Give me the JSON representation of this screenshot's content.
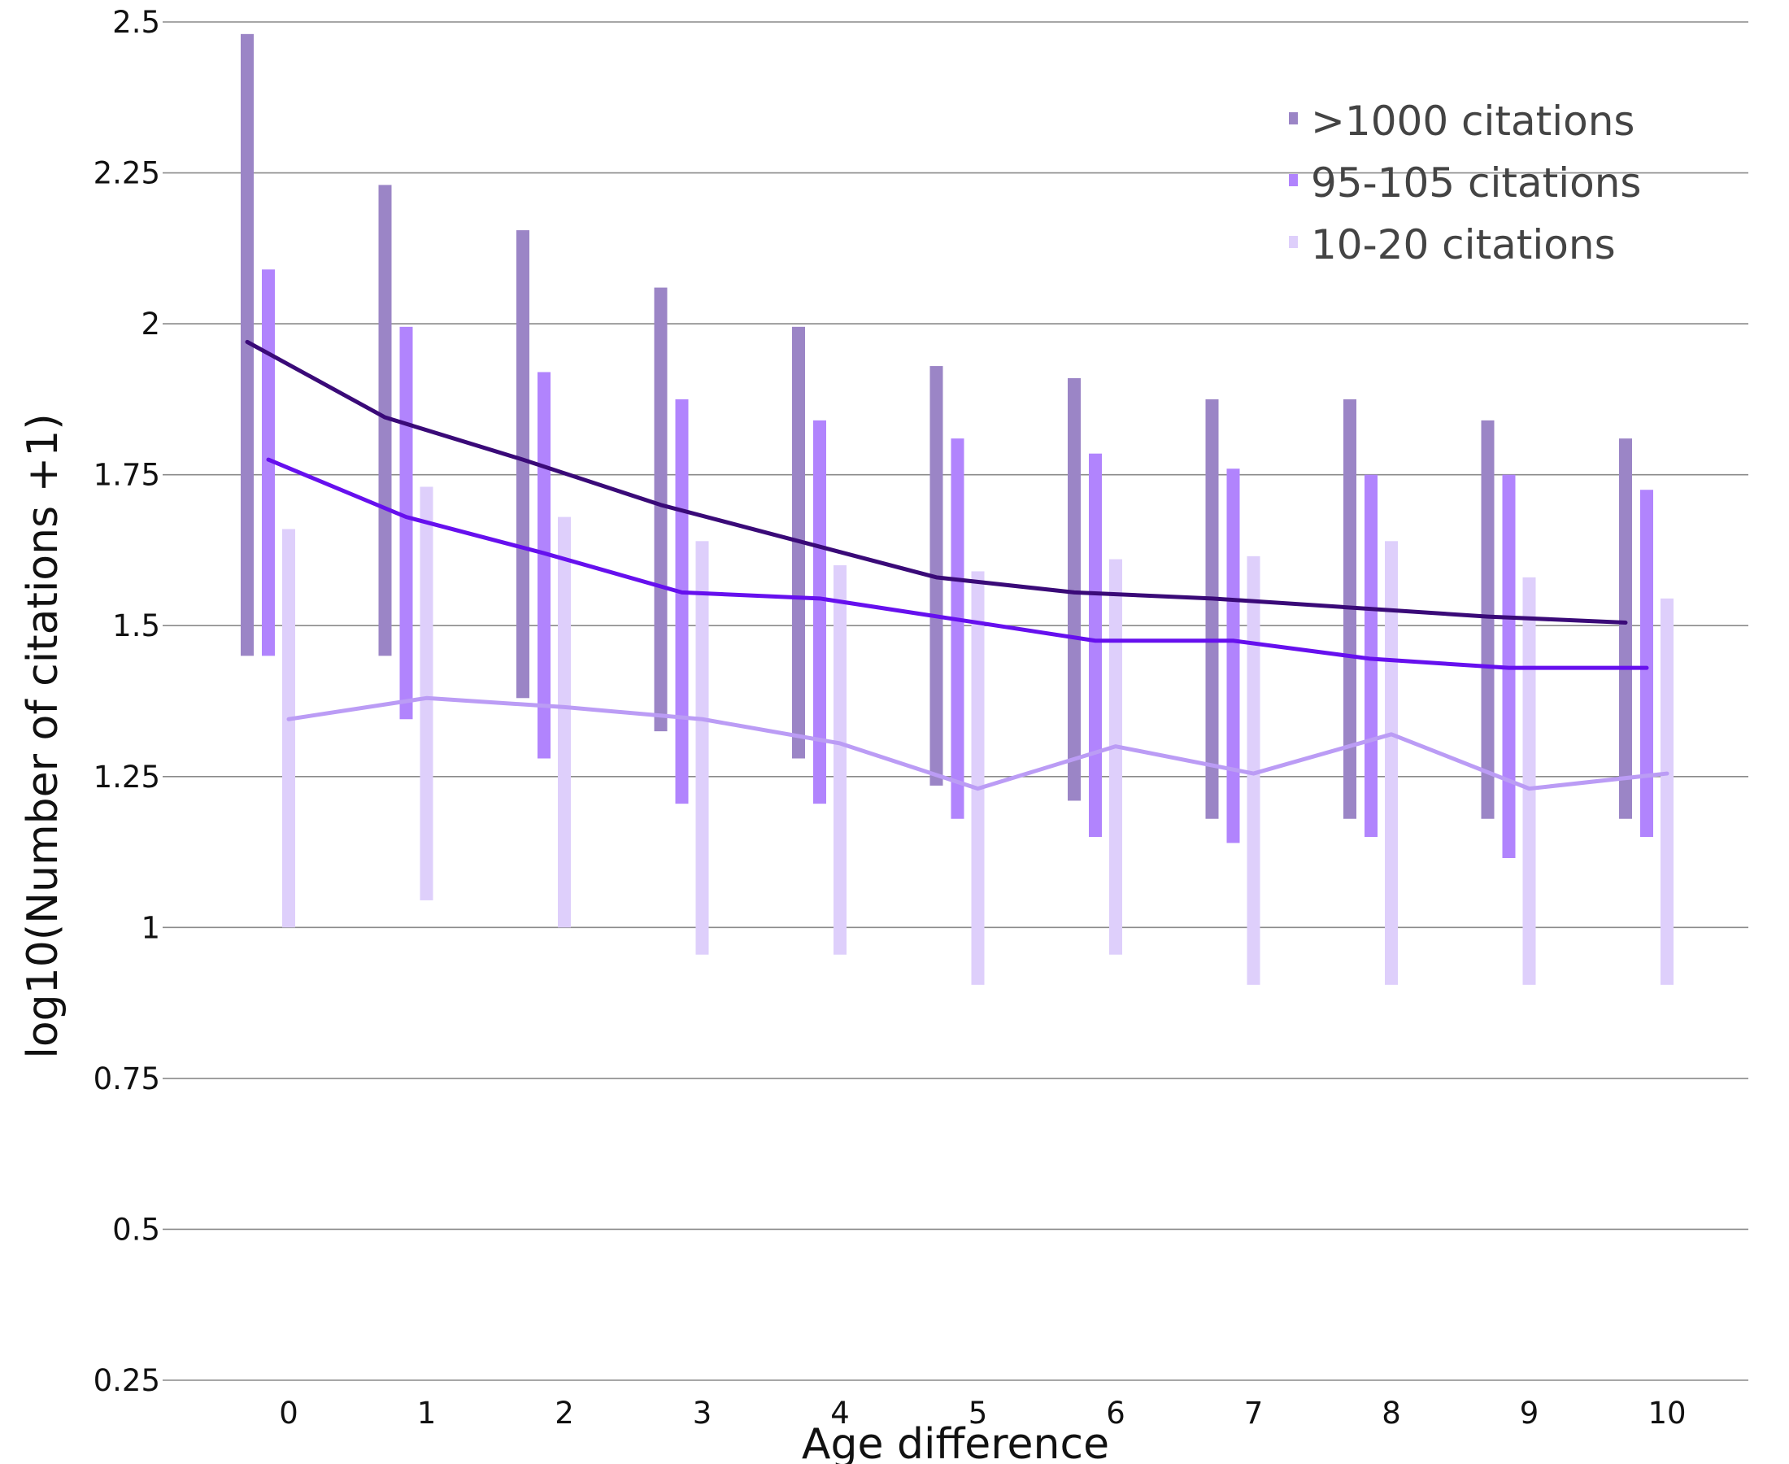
{
  "chart_data": {
    "type": "line",
    "xlabel": "Age difference",
    "ylabel": "log10(Number of citations +1)",
    "ylim": [
      0.25,
      2.5
    ],
    "yticks": [
      0.25,
      0.5,
      0.75,
      1,
      1.25,
      1.5,
      1.75,
      2,
      2.25,
      2.5
    ],
    "ytick_labels": [
      "0.25",
      "0.5",
      "0.75",
      "1",
      "1.25",
      "1.5",
      "1.75",
      "2",
      "2.25",
      "2.5"
    ],
    "x": [
      0,
      1,
      2,
      3,
      4,
      5,
      6,
      7,
      8,
      9,
      10
    ],
    "xtick_labels": [
      "0",
      "1",
      "2",
      "3",
      "4",
      "5",
      "6",
      "7",
      "8",
      "9",
      "10"
    ],
    "grid": "horizontal",
    "legend_position": "top-right",
    "series": [
      {
        "name": ">1000 citations",
        "line_color": "#3a0a78",
        "bar_color": "#9b85c6",
        "mean": [
          1.97,
          1.845,
          1.775,
          1.7,
          1.64,
          1.58,
          1.555,
          1.545,
          1.53,
          1.515,
          1.505
        ],
        "low": [
          1.45,
          1.45,
          1.38,
          1.325,
          1.28,
          1.235,
          1.21,
          1.18,
          1.18,
          1.18,
          1.18
        ],
        "high": [
          2.48,
          2.23,
          2.155,
          2.06,
          1.995,
          1.93,
          1.91,
          1.875,
          1.875,
          1.84,
          1.81
        ]
      },
      {
        "name": "95-105 citations",
        "line_color": "#6610ee",
        "bar_color": "#b184fd",
        "mean": [
          1.775,
          1.68,
          1.62,
          1.555,
          1.545,
          1.51,
          1.475,
          1.475,
          1.445,
          1.43,
          1.43
        ],
        "low": [
          1.45,
          1.345,
          1.28,
          1.205,
          1.205,
          1.18,
          1.15,
          1.14,
          1.15,
          1.115,
          1.15
        ],
        "high": [
          2.09,
          1.995,
          1.92,
          1.875,
          1.84,
          1.81,
          1.785,
          1.76,
          1.75,
          1.75,
          1.725
        ]
      },
      {
        "name": "10-20 citations",
        "line_color": "#bb9cf5",
        "bar_color": "#decffb",
        "mean": [
          1.345,
          1.38,
          1.365,
          1.345,
          1.305,
          1.23,
          1.3,
          1.255,
          1.32,
          1.23,
          1.255
        ],
        "low": [
          1.0,
          1.045,
          1.0,
          0.955,
          0.955,
          0.905,
          0.955,
          0.905,
          0.905,
          0.905,
          0.905
        ],
        "high": [
          1.66,
          1.73,
          1.68,
          1.64,
          1.6,
          1.59,
          1.61,
          1.615,
          1.64,
          1.58,
          1.545
        ]
      }
    ]
  }
}
